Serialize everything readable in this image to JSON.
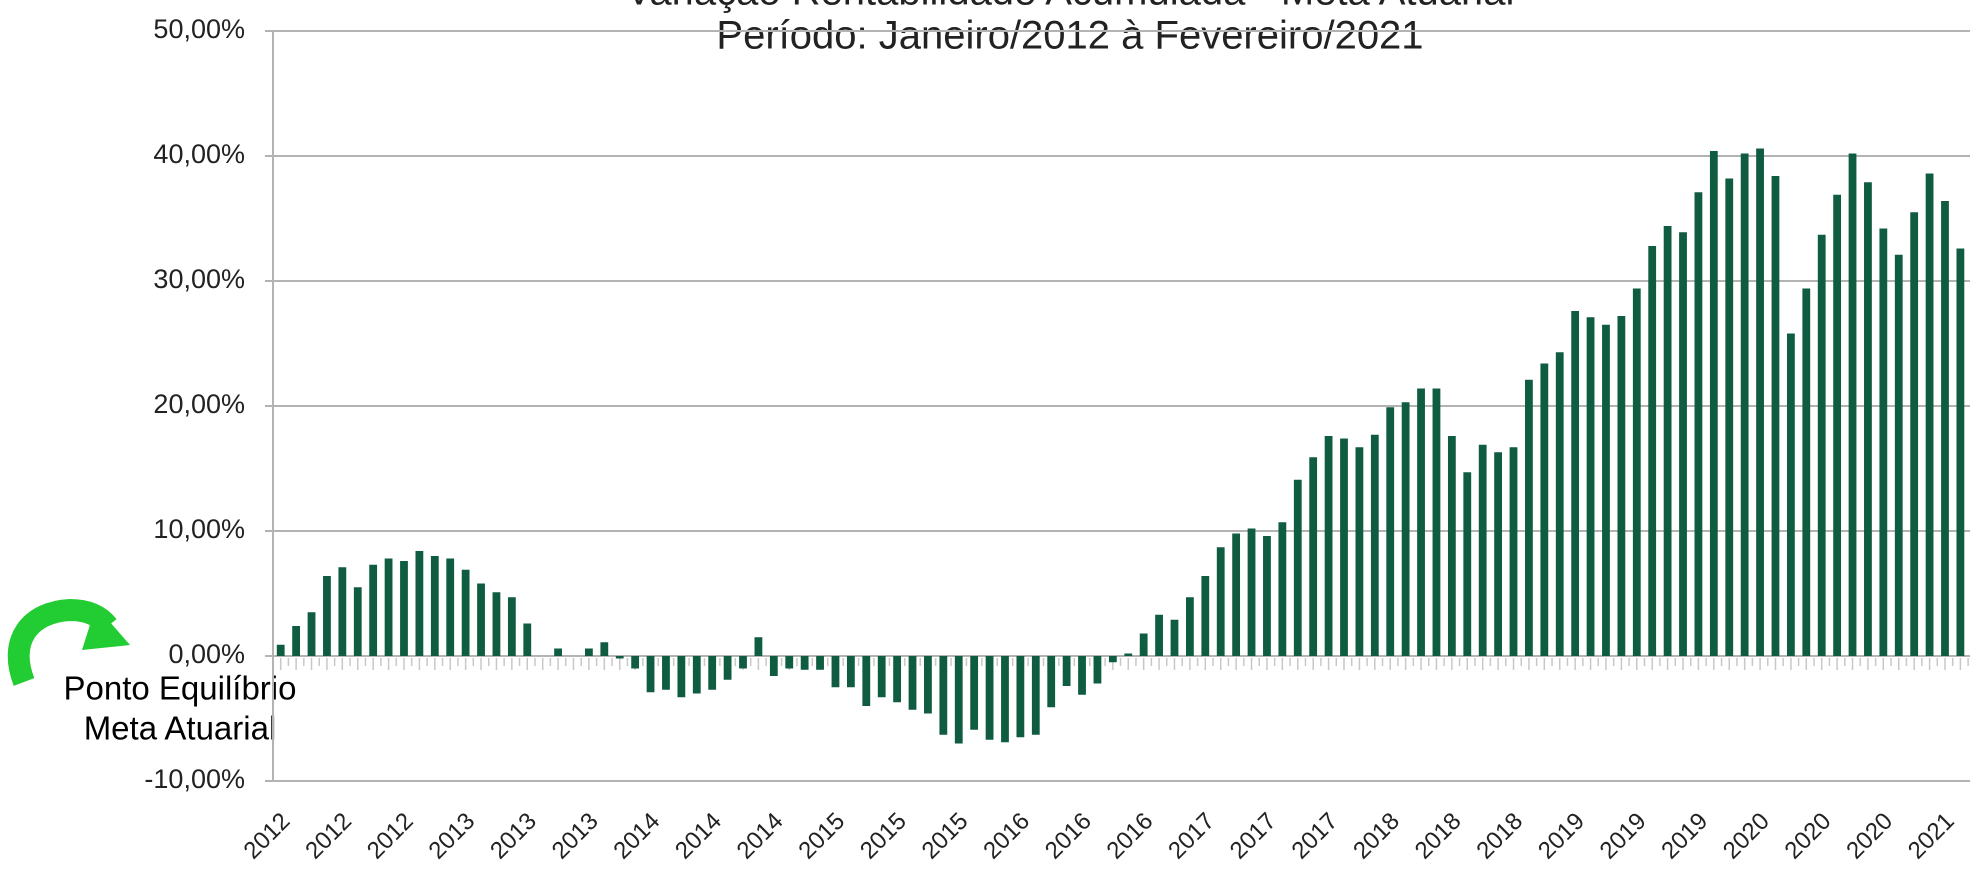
{
  "chart_data": {
    "type": "bar",
    "title": "Variação Rentabilidade Acumulada - Meta Atuarial",
    "subtitle": "Período: Janeiro/2012 à Fevereiro/2021",
    "annotation": [
      "Ponto Equilíbrio",
      "Meta Atuarial"
    ],
    "color": "#0f5c40",
    "grid": true,
    "ylim": [
      -10,
      50
    ],
    "yticks": [
      {
        "value": -10,
        "label": "-10,00%"
      },
      {
        "value": 0,
        "label": "0,00%"
      },
      {
        "value": 10,
        "label": "10,00%"
      },
      {
        "value": 20,
        "label": "20,00%"
      },
      {
        "value": 30,
        "label": "30,00%"
      },
      {
        "value": 40,
        "label": "40,00%"
      },
      {
        "value": 50,
        "label": "50,00%"
      }
    ],
    "categories": [
      "2012",
      null,
      null,
      null,
      "2012",
      null,
      null,
      null,
      "2012",
      null,
      null,
      null,
      "2013",
      null,
      null,
      null,
      "2013",
      null,
      null,
      null,
      "2013",
      null,
      null,
      null,
      "2014",
      null,
      null,
      null,
      "2014",
      null,
      null,
      null,
      "2014",
      null,
      null,
      null,
      "2015",
      null,
      null,
      null,
      "2015",
      null,
      null,
      null,
      "2015",
      null,
      null,
      null,
      "2016",
      null,
      null,
      null,
      "2016",
      null,
      null,
      null,
      "2016",
      null,
      null,
      null,
      "2017",
      null,
      null,
      null,
      "2017",
      null,
      null,
      null,
      "2017",
      null,
      null,
      null,
      "2018",
      null,
      null,
      null,
      "2018",
      null,
      null,
      null,
      "2018",
      null,
      null,
      null,
      "2019",
      null,
      null,
      null,
      "2019",
      null,
      null,
      null,
      "2019",
      null,
      null,
      null,
      "2020",
      null,
      null,
      null,
      "2020",
      null,
      null,
      null,
      "2020",
      null,
      null,
      null,
      "2021",
      null
    ],
    "values": [
      0.9,
      2.4,
      3.5,
      6.4,
      7.1,
      5.5,
      7.3,
      7.8,
      7.6,
      8.4,
      8.0,
      7.8,
      6.9,
      5.8,
      5.1,
      4.7,
      2.6,
      0,
      0.6,
      0,
      0.6,
      1.1,
      -0.2,
      -1.0,
      -2.9,
      -2.7,
      -3.3,
      -3.0,
      -2.7,
      -1.9,
      -1.0,
      1.5,
      -1.6,
      -1.0,
      -1.1,
      -1.1,
      -2.5,
      -2.5,
      -4.0,
      -3.3,
      -3.7,
      -4.3,
      -4.6,
      -6.3,
      -7.0,
      -5.9,
      -6.7,
      -6.9,
      -6.5,
      -6.3,
      -4.1,
      -2.4,
      -3.1,
      -2.2,
      -0.5,
      0.2,
      1.8,
      3.3,
      2.9,
      4.7,
      6.4,
      8.7,
      9.8,
      10.2,
      9.6,
      10.7,
      14.1,
      15.9,
      17.6,
      17.4,
      16.7,
      17.7,
      19.9,
      20.3,
      21.4,
      21.4,
      17.6,
      14.7,
      16.9,
      16.3,
      16.7,
      22.1,
      23.4,
      24.3,
      27.6,
      27.1,
      26.5,
      27.2,
      29.4,
      32.8,
      34.4,
      33.9,
      37.1,
      40.4,
      38.2,
      40.2,
      40.6,
      38.4,
      25.8,
      29.4,
      33.7,
      36.9,
      40.2,
      37.9,
      34.2,
      32.1,
      35.5,
      38.6,
      36.4,
      32.6
    ]
  }
}
